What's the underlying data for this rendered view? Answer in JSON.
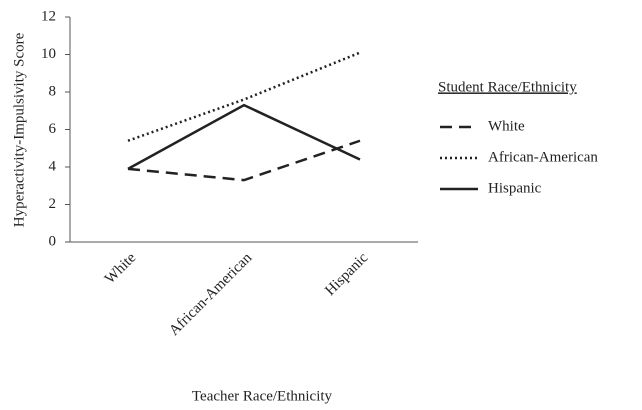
{
  "chart_data": {
    "type": "line",
    "x_label": "Teacher Race/Ethnicity",
    "y_label": "Hyperactivity-Impulsivity  Score",
    "legend_title": "Student Race/Ethnicity",
    "legend": "right",
    "categories": [
      "White",
      "African-American",
      "Hispanic"
    ],
    "series": [
      {
        "name": "White",
        "color": "#222222",
        "dash": "dashed",
        "values": [
          3.9,
          3.3,
          5.4
        ]
      },
      {
        "name": "African-American",
        "color": "#222222",
        "dash": "dotted",
        "values": [
          5.4,
          7.6,
          10.1
        ]
      },
      {
        "name": "Hispanic",
        "color": "#222222",
        "dash": "solid",
        "values": [
          3.9,
          7.3,
          4.4
        ]
      }
    ],
    "ylim": [
      0,
      12
    ],
    "yticks": [
      0,
      2,
      4,
      6,
      8,
      10,
      12
    ],
    "grid": false
  }
}
